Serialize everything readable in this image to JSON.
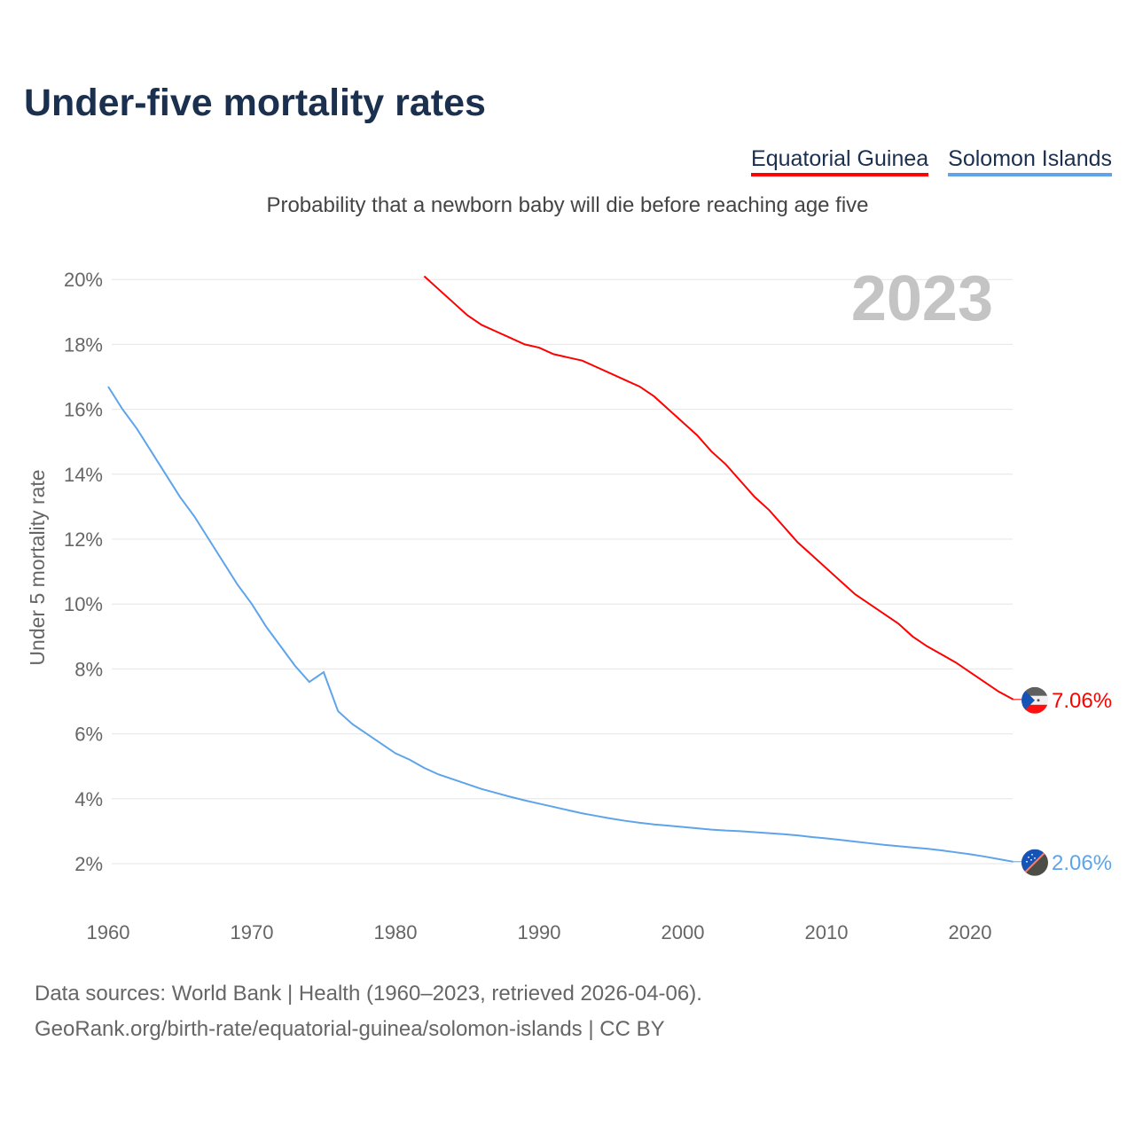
{
  "title": "Under-five mortality rates",
  "subtitle": "Probability that a newborn baby will die before reaching age five",
  "legend": [
    "Equatorial Guinea",
    "Solomon Islands"
  ],
  "year_label": "2023",
  "footer": {
    "line1": "Data sources: World Bank | Health (1960–2023, retrieved 2026-04-06).",
    "line2": "GeoRank.org/birth-rate/equatorial-guinea/solomon-islands | CC BY"
  },
  "chart_data": {
    "type": "line",
    "title": "Under-five mortality rates",
    "xlabel": "",
    "ylabel": "Under 5 mortality rate",
    "xlim": [
      1960,
      2023
    ],
    "ylim": [
      2,
      20
    ],
    "x_ticks": [
      "1960",
      "1970",
      "1980",
      "1990",
      "2000",
      "2010",
      "2020"
    ],
    "y_ticks": [
      "2%",
      "4%",
      "6%",
      "8%",
      "10%",
      "12%",
      "14%",
      "16%",
      "18%",
      "20%"
    ],
    "grid": true,
    "legend_position": "top-right",
    "series": [
      {
        "name": "Equatorial Guinea",
        "color": "#ff0000",
        "end_label": "7.06%",
        "x": [
          1982,
          1983,
          1984,
          1985,
          1986,
          1987,
          1988,
          1989,
          1990,
          1991,
          1992,
          1993,
          1994,
          1995,
          1996,
          1997,
          1998,
          1999,
          2000,
          2001,
          2002,
          2003,
          2004,
          2005,
          2006,
          2007,
          2008,
          2009,
          2010,
          2011,
          2012,
          2013,
          2014,
          2015,
          2016,
          2017,
          2018,
          2019,
          2020,
          2021,
          2022,
          2023
        ],
        "values": [
          20.1,
          19.7,
          19.3,
          18.9,
          18.6,
          18.4,
          18.2,
          18.0,
          17.9,
          17.7,
          17.6,
          17.5,
          17.3,
          17.1,
          16.9,
          16.7,
          16.4,
          16.0,
          15.6,
          15.2,
          14.7,
          14.3,
          13.8,
          13.3,
          12.9,
          12.4,
          11.9,
          11.5,
          11.1,
          10.7,
          10.3,
          10.0,
          9.7,
          9.4,
          9.0,
          8.7,
          8.45,
          8.2,
          7.9,
          7.6,
          7.3,
          7.06
        ]
      },
      {
        "name": "Solomon Islands",
        "color": "#5ea4ea",
        "end_label": "2.06%",
        "x": [
          1960,
          1961,
          1962,
          1963,
          1964,
          1965,
          1966,
          1967,
          1968,
          1969,
          1970,
          1971,
          1972,
          1973,
          1974,
          1975,
          1976,
          1977,
          1978,
          1979,
          1980,
          1981,
          1982,
          1983,
          1984,
          1985,
          1986,
          1987,
          1988,
          1989,
          1990,
          1991,
          1992,
          1993,
          1994,
          1995,
          1996,
          1997,
          1998,
          1999,
          2000,
          2001,
          2002,
          2003,
          2004,
          2005,
          2006,
          2007,
          2008,
          2009,
          2010,
          2011,
          2012,
          2013,
          2014,
          2015,
          2016,
          2017,
          2018,
          2019,
          2020,
          2021,
          2022,
          2023
        ],
        "values": [
          16.7,
          16.0,
          15.4,
          14.7,
          14.0,
          13.3,
          12.7,
          12.0,
          11.3,
          10.6,
          10.0,
          9.3,
          8.7,
          8.1,
          7.6,
          7.9,
          6.7,
          6.3,
          6.0,
          5.7,
          5.4,
          5.2,
          4.95,
          4.75,
          4.6,
          4.45,
          4.3,
          4.18,
          4.06,
          3.95,
          3.85,
          3.75,
          3.65,
          3.55,
          3.47,
          3.39,
          3.32,
          3.26,
          3.21,
          3.17,
          3.13,
          3.09,
          3.05,
          3.02,
          3.0,
          2.97,
          2.94,
          2.91,
          2.87,
          2.82,
          2.78,
          2.73,
          2.68,
          2.63,
          2.58,
          2.54,
          2.5,
          2.46,
          2.41,
          2.35,
          2.29,
          2.22,
          2.14,
          2.06
        ]
      }
    ]
  }
}
